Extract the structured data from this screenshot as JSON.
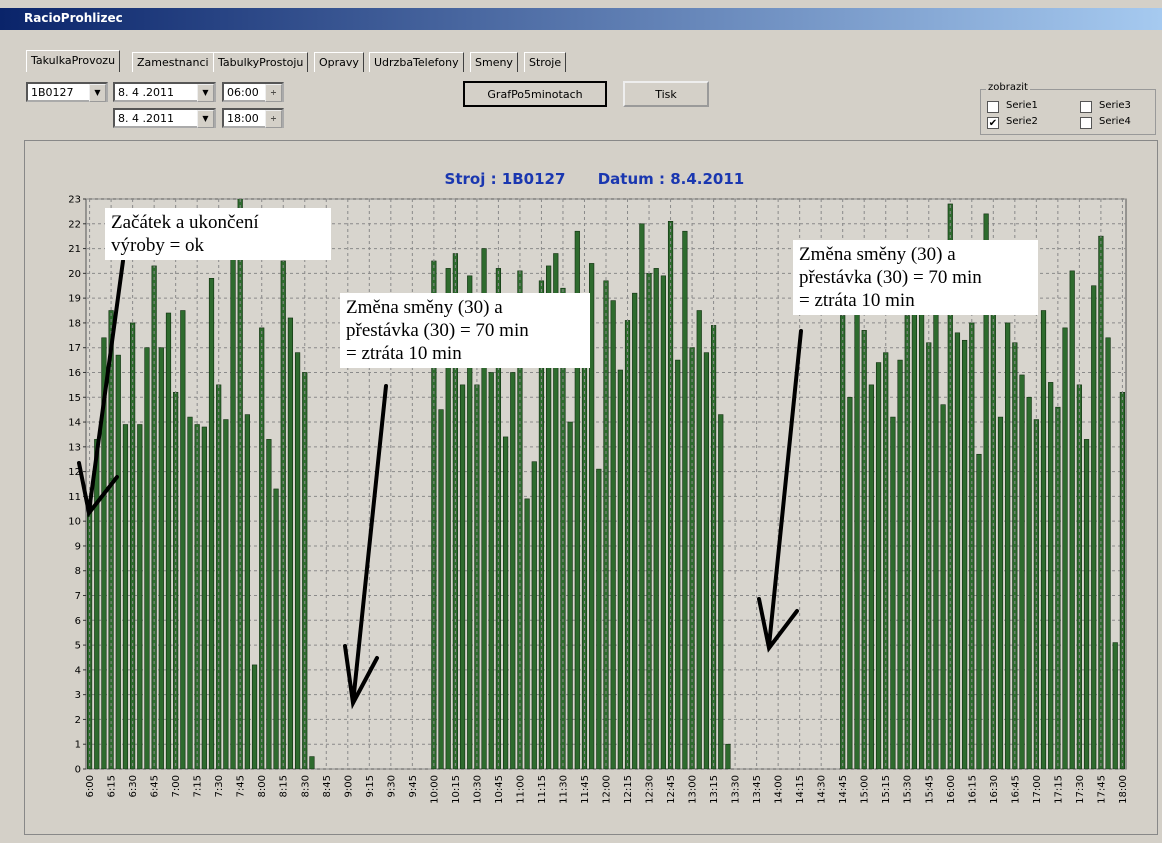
{
  "window": {
    "title": "RacioProhlizec"
  },
  "tabs": [
    "TakulkaProvozu",
    "Zamestnanci",
    "TabulkyProstoju",
    "Opravy",
    "UdrzbaTelefony",
    "Smeny",
    "Stroje"
  ],
  "controls": {
    "machine": "1B0127",
    "date_from": "8. 4 .2011",
    "date_to": "8. 4 .2011",
    "time_from": "06:00",
    "time_to": "18:00",
    "button_graph": "GrafPo5minotach",
    "button_print": "Tisk"
  },
  "display_group": {
    "label": "zobrazit",
    "options": [
      {
        "name": "Serie1",
        "checked": false
      },
      {
        "name": "Serie3",
        "checked": false
      },
      {
        "name": "Serie2",
        "checked": true
      },
      {
        "name": "Serie4",
        "checked": false
      }
    ]
  },
  "annotations": [
    {
      "lines": [
        "Začátek a ukončení",
        "výroby = ok"
      ]
    },
    {
      "lines": [
        "Změna směny (30) a",
        "přestávka (30) = 70 min",
        "= ztráta 10 min"
      ]
    },
    {
      "lines": [
        "Změna směny (30) a",
        "přestávka (30) = 70 min",
        "= ztráta 10 min"
      ]
    }
  ],
  "chart_data": {
    "type": "bar",
    "title": "Stroj : 1B0127",
    "date_label": "Datum : 8.4.2011",
    "color": "#2e6b2e",
    "grid": true,
    "ylim": [
      0,
      23
    ],
    "yticks": [
      0,
      1,
      2,
      3,
      4,
      5,
      6,
      7,
      8,
      9,
      10,
      11,
      12,
      13,
      14,
      15,
      16,
      17,
      18,
      19,
      20,
      21,
      22,
      23
    ],
    "categories": [
      "6:00",
      null,
      null,
      "6:15",
      null,
      null,
      "6:30",
      null,
      null,
      "6:45",
      null,
      null,
      "7:00",
      null,
      null,
      "7:15",
      null,
      null,
      "7:30",
      null,
      null,
      "7:45",
      null,
      null,
      "8:00",
      null,
      null,
      "8:15",
      null,
      null,
      "8:30",
      null,
      null,
      "8:45",
      null,
      null,
      "9:00",
      null,
      null,
      "9:15",
      null,
      null,
      "9:30",
      null,
      null,
      "9:45",
      null,
      null,
      "10:00",
      null,
      null,
      "10:15",
      null,
      null,
      "10:30",
      null,
      null,
      "10:45",
      null,
      null,
      "11:00",
      null,
      null,
      "11:15",
      null,
      null,
      "11:30",
      null,
      null,
      "11:45",
      null,
      null,
      "12:00",
      null,
      null,
      "12:15",
      null,
      null,
      "12:30",
      null,
      null,
      "12:45",
      null,
      null,
      "13:00",
      null,
      null,
      "13:15",
      null,
      null,
      "13:30",
      null,
      null,
      "13:45",
      null,
      null,
      "14:00",
      null,
      null,
      "14:15",
      null,
      null,
      "14:30",
      null,
      null,
      "14:45",
      null,
      null,
      "15:00",
      null,
      null,
      "15:15",
      null,
      null,
      "15:30",
      null,
      null,
      "15:45",
      null,
      null,
      "16:00",
      null,
      null,
      "16:15",
      null,
      null,
      "16:30",
      null,
      null,
      "16:45",
      null,
      null,
      "17:00",
      null,
      null,
      "17:15",
      null,
      null,
      "17:30",
      null,
      null,
      "17:45",
      null,
      null,
      "18:00"
    ],
    "values": [
      10.8,
      13.3,
      17.4,
      18.5,
      16.7,
      13.9,
      18.0,
      13.9,
      17.0,
      20.3,
      17.0,
      18.4,
      15.2,
      18.5,
      14.2,
      13.9,
      13.8,
      19.8,
      15.5,
      14.1,
      20.9,
      23.4,
      14.3,
      4.2,
      17.8,
      13.3,
      11.3,
      20.5,
      18.2,
      16.8,
      16.0,
      0.5,
      0,
      0,
      0,
      0,
      0,
      0,
      0,
      0,
      0,
      0,
      0,
      0,
      0,
      0,
      0,
      0,
      20.5,
      14.5,
      20.2,
      20.8,
      15.5,
      19.9,
      15.5,
      21.0,
      16.0,
      20.2,
      13.4,
      16.0,
      20.1,
      10.9,
      12.4,
      19.7,
      20.3,
      20.8,
      19.4,
      14.0,
      21.7,
      19.1,
      20.4,
      12.1,
      19.7,
      18.9,
      16.1,
      18.1,
      19.2,
      22.0,
      20.0,
      20.2,
      19.9,
      22.1,
      16.5,
      21.7,
      17.0,
      18.5,
      16.8,
      17.9,
      14.3,
      1.0,
      0,
      0,
      0,
      0,
      0,
      0,
      0,
      0,
      0,
      0,
      0,
      0,
      0,
      0,
      0,
      18.3,
      15.0,
      18.5,
      17.7,
      15.5,
      16.4,
      16.8,
      14.2,
      16.5,
      18.3,
      18.5,
      18.6,
      17.2,
      18.8,
      14.7,
      22.8,
      17.6,
      17.3,
      18.0,
      12.7,
      22.4,
      19.0,
      14.2,
      18.0,
      17.2,
      15.9,
      15.0,
      14.1,
      18.5,
      15.6,
      14.6,
      17.8,
      20.1,
      15.5,
      13.3,
      19.5,
      21.5,
      17.4,
      5.1,
      15.2
    ]
  }
}
